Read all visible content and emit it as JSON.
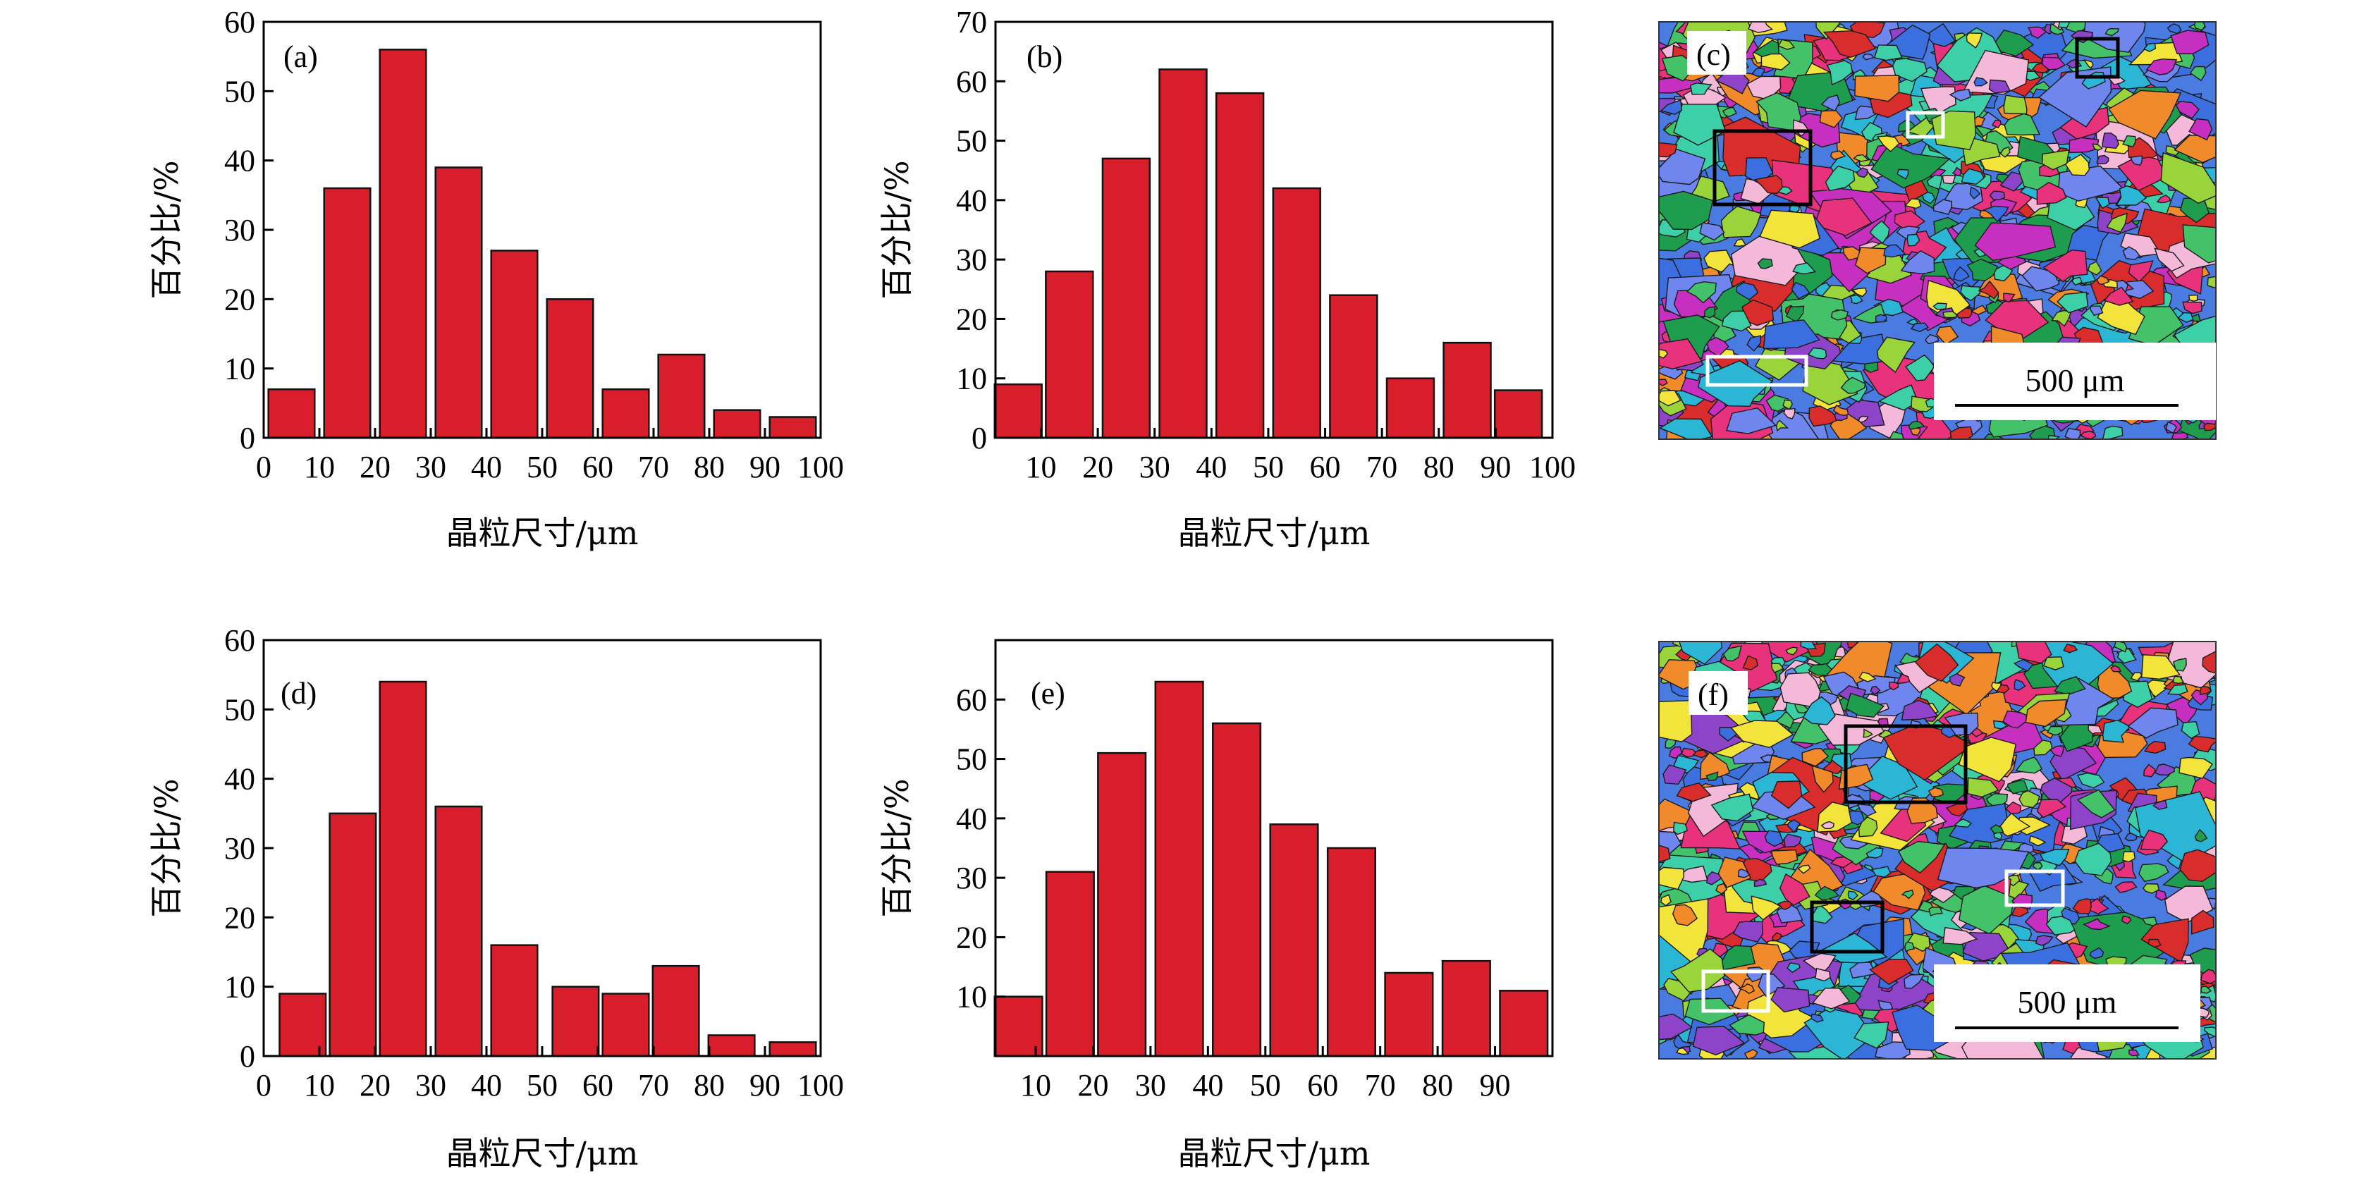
{
  "colors": {
    "bar": "#d81e2a",
    "bar_stroke": "#111111",
    "axis": "#000000"
  },
  "chart_data": [
    {
      "type": "bar",
      "panel": "(a)",
      "xlabel": "晶粒尺寸/μm",
      "ylabel": "百分比/%",
      "xlim": [
        0,
        100
      ],
      "ylim": [
        0,
        60
      ],
      "xticks": [
        0,
        10,
        20,
        30,
        40,
        50,
        60,
        70,
        80,
        90,
        100
      ],
      "yticks": [
        0,
        10,
        20,
        30,
        40,
        50,
        60
      ],
      "x": [
        5,
        15,
        25,
        35,
        45,
        55,
        65,
        75,
        85,
        95
      ],
      "values": [
        7,
        36,
        56,
        39,
        27,
        20,
        7,
        12,
        4,
        3
      ]
    },
    {
      "type": "bar",
      "panel": "(b)",
      "xlabel": "晶粒尺寸/μm",
      "ylabel": "百分比/%",
      "xlim": [
        2,
        100
      ],
      "ylim": [
        0,
        70
      ],
      "xticks": [
        10,
        20,
        30,
        40,
        50,
        60,
        70,
        80,
        90,
        100
      ],
      "yticks": [
        0,
        10,
        20,
        30,
        40,
        50,
        60,
        70
      ],
      "x": [
        6,
        15,
        25,
        35,
        45,
        55,
        65,
        75,
        85,
        94
      ],
      "values": [
        9,
        28,
        47,
        62,
        58,
        42,
        24,
        10,
        16,
        8
      ]
    },
    {
      "type": "bar",
      "panel": "(d)",
      "xlabel": "晶粒尺寸/μm",
      "ylabel": "百分比/%",
      "xlim": [
        0,
        100
      ],
      "ylim": [
        0,
        60
      ],
      "xticks": [
        0,
        10,
        20,
        30,
        40,
        50,
        60,
        70,
        80,
        90,
        100
      ],
      "yticks": [
        0,
        10,
        20,
        30,
        40,
        50,
        60
      ],
      "x": [
        7,
        16,
        25,
        35,
        45,
        56,
        65,
        74,
        84,
        95
      ],
      "values": [
        9,
        35,
        54,
        36,
        16,
        10,
        9,
        13,
        3,
        2
      ]
    },
    {
      "type": "bar",
      "panel": "(e)",
      "xlabel": "晶粒尺寸/μm",
      "ylabel": "百分比/%",
      "xlim": [
        3,
        100
      ],
      "ylim": [
        0,
        70
      ],
      "xticks": [
        10,
        20,
        30,
        40,
        50,
        60,
        70,
        80,
        90
      ],
      "yticks": [
        10,
        20,
        30,
        40,
        50,
        60
      ],
      "x": [
        7,
        16,
        25,
        35,
        45,
        55,
        65,
        75,
        85,
        95
      ],
      "values": [
        10,
        31,
        51,
        63,
        56,
        39,
        35,
        14,
        16,
        11
      ]
    }
  ],
  "images": [
    {
      "panel": "(c)",
      "scale_bar": "500 μm"
    },
    {
      "panel": "(f)",
      "scale_bar": "500 μm"
    }
  ]
}
